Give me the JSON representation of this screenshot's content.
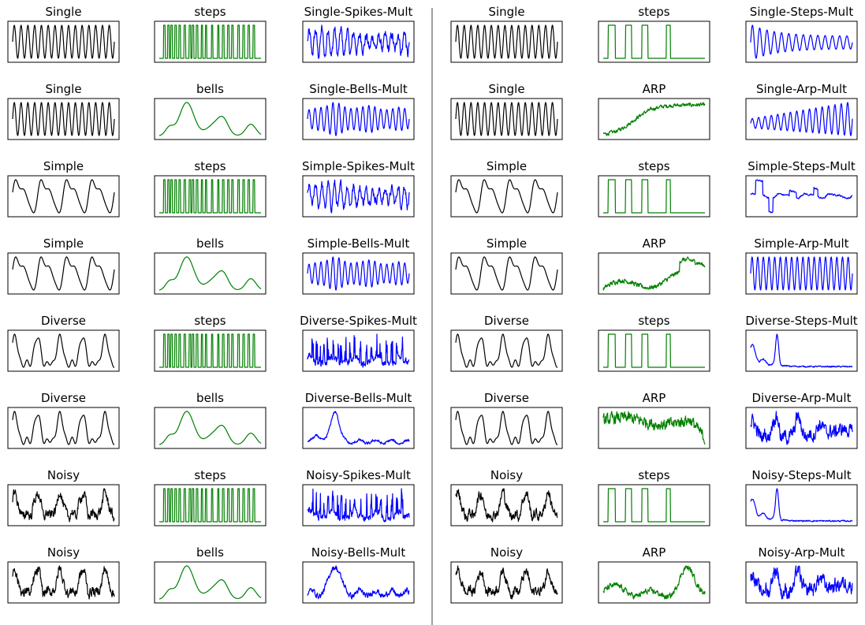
{
  "colors": {
    "base": "#000000",
    "modifier": "#008000",
    "combined": "#0000ff",
    "frame": "#000000",
    "divider": "#808080"
  },
  "chart_data": {
    "type": "line",
    "layout": "grid of small multiples (8 rows x 6 columns), left and right halves separated by a vertical divider",
    "axes_visible": false,
    "grid": false,
    "note_values": "Shapes only; no axis ticks or values are printed. Each panel's waveform is a qualitative description.",
    "panels": [
      {
        "title": "Single",
        "color": "base",
        "wave": "sine"
      },
      {
        "title": "steps",
        "color": "modifier",
        "wave": "spikes"
      },
      {
        "title": "Single-Spikes-Mult",
        "color": "combined",
        "wave": "sineSpiky"
      },
      {
        "title": "Single",
        "color": "base",
        "wave": "sine"
      },
      {
        "title": "steps",
        "color": "modifier",
        "wave": "stepsRect"
      },
      {
        "title": "Single-Steps-Mult",
        "color": "combined",
        "wave": "sineDecay"
      },
      {
        "title": "Single",
        "color": "base",
        "wave": "sine"
      },
      {
        "title": "bells",
        "color": "modifier",
        "wave": "bells"
      },
      {
        "title": "Single-Bells-Mult",
        "color": "combined",
        "wave": "sineBells"
      },
      {
        "title": "Single",
        "color": "base",
        "wave": "sine"
      },
      {
        "title": "ARP",
        "color": "modifier",
        "wave": "arpRise"
      },
      {
        "title": "Single-Arp-Mult",
        "color": "combined",
        "wave": "sineGrow"
      },
      {
        "title": "Simple",
        "color": "base",
        "wave": "simple"
      },
      {
        "title": "steps",
        "color": "modifier",
        "wave": "spikes"
      },
      {
        "title": "Simple-Spikes-Mult",
        "color": "combined",
        "wave": "sineSpiky"
      },
      {
        "title": "Simple",
        "color": "base",
        "wave": "simple"
      },
      {
        "title": "steps",
        "color": "modifier",
        "wave": "stepsRect"
      },
      {
        "title": "Simple-Steps-Mult",
        "color": "combined",
        "wave": "simpleSteps"
      },
      {
        "title": "Simple",
        "color": "base",
        "wave": "simple"
      },
      {
        "title": "bells",
        "color": "modifier",
        "wave": "bells"
      },
      {
        "title": "Simple-Bells-Mult",
        "color": "combined",
        "wave": "sineBells"
      },
      {
        "title": "Simple",
        "color": "base",
        "wave": "simple"
      },
      {
        "title": "ARP",
        "color": "modifier",
        "wave": "arpNoisy"
      },
      {
        "title": "Simple-Arp-Mult",
        "color": "combined",
        "wave": "sineFast"
      },
      {
        "title": "Diverse",
        "color": "base",
        "wave": "diverse"
      },
      {
        "title": "steps",
        "color": "modifier",
        "wave": "spikes"
      },
      {
        "title": "Diverse-Spikes-Mult",
        "color": "combined",
        "wave": "spikyNoise"
      },
      {
        "title": "Diverse",
        "color": "base",
        "wave": "diverse"
      },
      {
        "title": "steps",
        "color": "modifier",
        "wave": "stepsRect"
      },
      {
        "title": "Diverse-Steps-Mult",
        "color": "combined",
        "wave": "decaySpike"
      },
      {
        "title": "Diverse",
        "color": "base",
        "wave": "diverse"
      },
      {
        "title": "bells",
        "color": "modifier",
        "wave": "bells"
      },
      {
        "title": "Diverse-Bells-Mult",
        "color": "combined",
        "wave": "bellPeak"
      },
      {
        "title": "Diverse",
        "color": "base",
        "wave": "diverse"
      },
      {
        "title": "ARP",
        "color": "modifier",
        "wave": "arpFall"
      },
      {
        "title": "Diverse-Arp-Mult",
        "color": "combined",
        "wave": "noisyWave"
      },
      {
        "title": "Noisy",
        "color": "base",
        "wave": "noisy"
      },
      {
        "title": "steps",
        "color": "modifier",
        "wave": "spikes"
      },
      {
        "title": "Noisy-Spikes-Mult",
        "color": "combined",
        "wave": "spikyNoise"
      },
      {
        "title": "Noisy",
        "color": "base",
        "wave": "noisy"
      },
      {
        "title": "steps",
        "color": "modifier",
        "wave": "stepsRect"
      },
      {
        "title": "Noisy-Steps-Mult",
        "color": "combined",
        "wave": "decaySpike"
      },
      {
        "title": "Noisy",
        "color": "base",
        "wave": "noisy"
      },
      {
        "title": "bells",
        "color": "modifier",
        "wave": "bells"
      },
      {
        "title": "Noisy-Bells-Mult",
        "color": "combined",
        "wave": "bellPeakNoisy"
      },
      {
        "title": "Noisy",
        "color": "base",
        "wave": "noisy"
      },
      {
        "title": "ARP",
        "color": "modifier",
        "wave": "arpBump"
      },
      {
        "title": "Noisy-Arp-Mult",
        "color": "combined",
        "wave": "noisyWave"
      }
    ]
  }
}
